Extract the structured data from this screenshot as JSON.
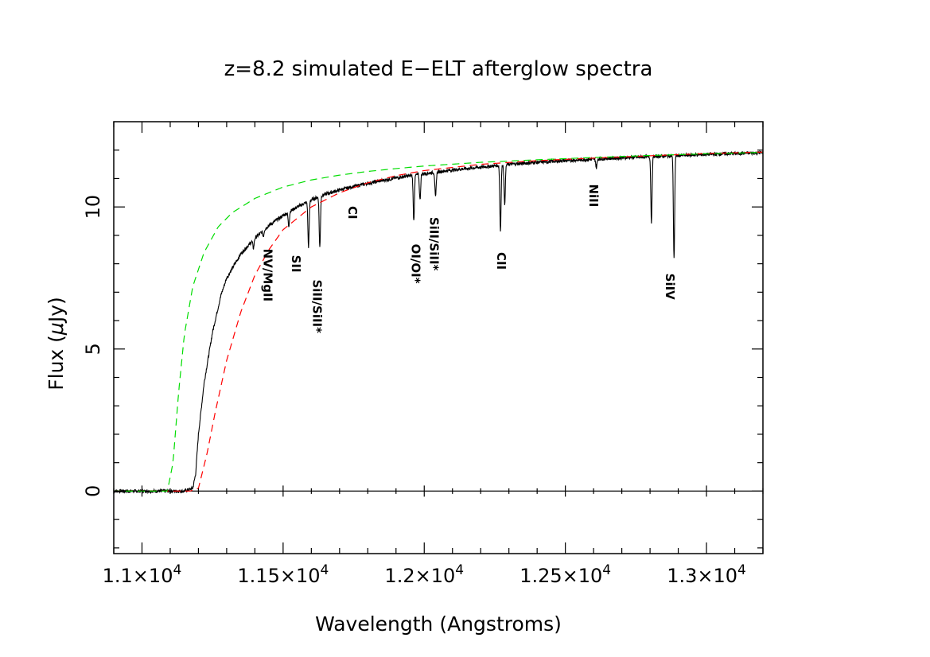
{
  "chart_data": {
    "type": "line",
    "title": "z=8.2 simulated E−ELT afterglow spectra",
    "xlabel": "Wavelength (Angstroms)",
    "ylabel_prefix": "Flux (",
    "ylabel_mu": "μ",
    "ylabel_suffix": "Jy)",
    "xlim": [
      10900,
      13200
    ],
    "ylim": [
      -2.2,
      13
    ],
    "x_ticks": [
      {
        "value": 11000,
        "mantissa": "1.1×10",
        "exp": "4"
      },
      {
        "value": 11500,
        "mantissa": "1.15×10",
        "exp": "4"
      },
      {
        "value": 12000,
        "mantissa": "1.2×10",
        "exp": "4"
      },
      {
        "value": 12500,
        "mantissa": "1.25×10",
        "exp": "4"
      },
      {
        "value": 13000,
        "mantissa": "1.3×10",
        "exp": "4"
      }
    ],
    "y_ticks": [
      {
        "value": 0,
        "label": "0"
      },
      {
        "value": 5,
        "label": "5"
      },
      {
        "value": 10,
        "label": "10"
      }
    ],
    "zero_line": 0,
    "series": [
      {
        "color": "#000000",
        "style": "solid",
        "x": [
          10900,
          11150,
          11180,
          11190,
          11200,
          11220,
          11250,
          11280,
          11300,
          11350,
          11400,
          11450,
          11500,
          11550,
          11600,
          11650,
          11700,
          11750,
          11800,
          11850,
          11900,
          11950,
          12000,
          12100,
          12200,
          12300,
          12400,
          12500,
          12600,
          12700,
          12800,
          12900,
          13000,
          13100,
          13200
        ],
        "y": [
          0.0,
          0.0,
          0.1,
          0.6,
          2.0,
          3.8,
          5.6,
          6.9,
          7.5,
          8.35,
          8.9,
          9.35,
          9.7,
          10.0,
          10.25,
          10.45,
          10.6,
          10.72,
          10.83,
          10.93,
          11.02,
          11.1,
          11.17,
          11.3,
          11.4,
          11.5,
          11.57,
          11.63,
          11.68,
          11.73,
          11.77,
          11.81,
          11.85,
          11.88,
          11.91
        ],
        "absorption": [
          {
            "x": 11395,
            "depth": 0.3
          },
          {
            "x": 11430,
            "depth": 0.2
          },
          {
            "x": 11520,
            "depth": 0.5
          },
          {
            "x": 11590,
            "depth": 1.6
          },
          {
            "x": 11630,
            "depth": 1.8
          },
          {
            "x": 11963,
            "depth": 1.6
          },
          {
            "x": 11985,
            "depth": 0.9
          },
          {
            "x": 12040,
            "depth": 0.9
          },
          {
            "x": 12270,
            "depth": 2.3
          },
          {
            "x": 12285,
            "depth": 1.4
          },
          {
            "x": 12610,
            "depth": 0.3
          },
          {
            "x": 12805,
            "depth": 2.3
          },
          {
            "x": 12885,
            "depth": 3.65
          }
        ]
      },
      {
        "color": "#ff0000",
        "style": "dashed",
        "x": [
          10900,
          11170,
          11200,
          11230,
          11260,
          11300,
          11350,
          11400,
          11450,
          11500,
          11600,
          11700,
          11800,
          11900,
          12000,
          12200,
          12400,
          12600,
          12800,
          13000,
          13200
        ],
        "y": [
          0.0,
          0.0,
          0.1,
          1.3,
          2.8,
          4.6,
          6.3,
          7.6,
          8.5,
          9.2,
          10.0,
          10.5,
          10.85,
          11.1,
          11.28,
          11.5,
          11.63,
          11.72,
          11.8,
          11.88,
          11.93
        ]
      },
      {
        "color": "#00dd00",
        "style": "dashed",
        "x": [
          10900,
          11090,
          11110,
          11130,
          11150,
          11180,
          11220,
          11270,
          11320,
          11400,
          11500,
          11600,
          11700,
          11800,
          11900,
          12000,
          12200,
          12400,
          12600,
          12800,
          13000,
          13200
        ],
        "y": [
          0.0,
          0.0,
          1.0,
          3.5,
          5.5,
          7.2,
          8.4,
          9.3,
          9.8,
          10.3,
          10.7,
          10.95,
          11.12,
          11.25,
          11.35,
          11.44,
          11.57,
          11.66,
          11.74,
          11.81,
          11.87,
          11.92
        ]
      }
    ],
    "annotations": [
      {
        "text": "NV/MgII",
        "x": 11445,
        "y": 7.6
      },
      {
        "text": "SII",
        "x": 11545,
        "y": 8.0
      },
      {
        "text": "SiII/SiII*",
        "x": 11620,
        "y": 6.5
      },
      {
        "text": "CI",
        "x": 11745,
        "y": 9.8
      },
      {
        "text": "OI/OI*",
        "x": 11970,
        "y": 8.0
      },
      {
        "text": "SiII/SiII*",
        "x": 12035,
        "y": 8.7
      },
      {
        "text": "CII",
        "x": 12272,
        "y": 8.1
      },
      {
        "text": "NiII",
        "x": 12600,
        "y": 10.4
      },
      {
        "text": "SiIV",
        "x": 12870,
        "y": 7.2
      }
    ]
  }
}
